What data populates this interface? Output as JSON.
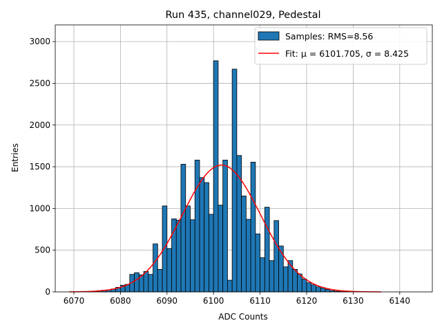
{
  "chart_data": {
    "type": "bar",
    "title": "Run 435, channel029, Pedestal",
    "xlabel": "ADC Counts",
    "ylabel": "Entries",
    "xlim": [
      6066,
      6147
    ],
    "ylim": [
      0,
      3200
    ],
    "xticks": [
      6070,
      6080,
      6090,
      6100,
      6110,
      6120,
      6130,
      6140
    ],
    "yticks": [
      0,
      500,
      1000,
      1500,
      2000,
      2500,
      3000
    ],
    "grid": true,
    "legend_position": "upper-right",
    "colors": {
      "bars": "#1f77b4",
      "fit": "#ff0000",
      "edge": "#000000"
    },
    "histogram": {
      "name": "Samples: RMS=8.56",
      "bin_start": 6073,
      "bin_width": 1,
      "values": [
        3,
        8,
        15,
        20,
        25,
        35,
        55,
        80,
        90,
        210,
        230,
        205,
        245,
        210,
        575,
        270,
        1030,
        520,
        875,
        860,
        1530,
        1030,
        865,
        1580,
        1370,
        1310,
        930,
        2770,
        1040,
        1580,
        140,
        2670,
        1635,
        1150,
        870,
        1555,
        695,
        410,
        1015,
        375,
        855,
        550,
        300,
        375,
        270,
        215,
        155,
        110,
        85,
        60,
        45,
        30,
        15,
        8,
        4,
        2
      ]
    },
    "fit": {
      "name": "Fit: μ = 6101.705, σ = 8.425",
      "mu": 6101.705,
      "sigma": 8.425,
      "amplitude": 1520,
      "x_range": [
        6069,
        6136
      ]
    }
  }
}
